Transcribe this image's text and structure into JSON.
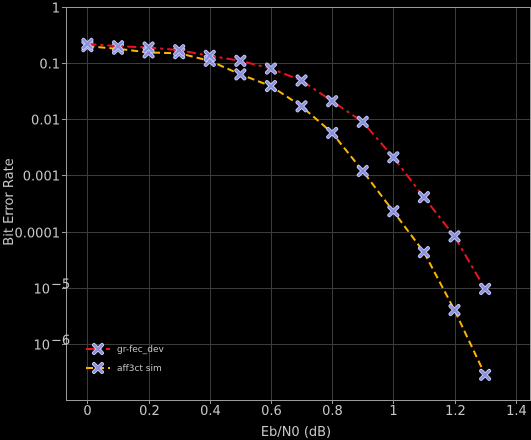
{
  "chart_data": {
    "type": "line",
    "title": "",
    "xlabel": "Eb/N0 (dB)",
    "ylabel": "Bit Error Rate",
    "xlim": [
      -0.07,
      1.45
    ],
    "ylim": [
      1e-07,
      1
    ],
    "yscale": "log",
    "grid": true,
    "legend_position": "bottom-left",
    "x_ticks": [
      {
        "value": 0,
        "label": "0"
      },
      {
        "value": 0.2,
        "label": "0.2"
      },
      {
        "value": 0.4,
        "label": "0.4"
      },
      {
        "value": 0.6,
        "label": "0.6"
      },
      {
        "value": 0.8,
        "label": "0.8"
      },
      {
        "value": 1.0,
        "label": "1"
      },
      {
        "value": 1.2,
        "label": "1.2"
      },
      {
        "value": 1.4,
        "label": "1.4"
      }
    ],
    "y_ticks": [
      {
        "value": 1,
        "label": "1",
        "sup": ""
      },
      {
        "value": 0.1,
        "label": "0.1",
        "sup": ""
      },
      {
        "value": 0.01,
        "label": "0.01",
        "sup": ""
      },
      {
        "value": 0.001,
        "label": "0.001",
        "sup": ""
      },
      {
        "value": 0.0001,
        "label": "0.0001",
        "sup": ""
      },
      {
        "value": 1e-05,
        "label": "10",
        "sup": "−5"
      },
      {
        "value": 1e-06,
        "label": "10",
        "sup": "−6"
      }
    ],
    "series": [
      {
        "name": "gr-fec_dev",
        "color": "#e8141e",
        "line_style": "dashdot",
        "marker": "x",
        "x": [
          0,
          0.1,
          0.2,
          0.3,
          0.4,
          0.5,
          0.6,
          0.7,
          0.8,
          0.9,
          1.0,
          1.1,
          1.2,
          1.3
        ],
        "y": [
          0.22,
          0.2,
          0.19,
          0.17,
          0.135,
          0.11,
          0.08,
          0.049,
          0.021,
          0.009,
          0.0021,
          0.00041,
          8.2e-05,
          9.5e-06
        ]
      },
      {
        "name": "aff3ct sim",
        "color": "#ffb400",
        "line_style": "dashed",
        "marker": "x",
        "x": [
          0,
          0.1,
          0.2,
          0.3,
          0.4,
          0.5,
          0.6,
          0.7,
          0.8,
          0.9,
          1.0,
          1.1,
          1.2,
          1.3
        ],
        "y": [
          0.2,
          0.18,
          0.155,
          0.15,
          0.11,
          0.063,
          0.039,
          0.017,
          0.0057,
          0.0012,
          0.00023,
          4.3e-05,
          4e-06,
          2.8e-07
        ]
      }
    ]
  },
  "colors": {
    "background": "#000000",
    "axis": "#9a9a9a",
    "grid": "#3c3c3c",
    "text": "#c8c8c8",
    "marker_fill": "#8a8fd6",
    "marker_edge": "#c8ccff"
  }
}
